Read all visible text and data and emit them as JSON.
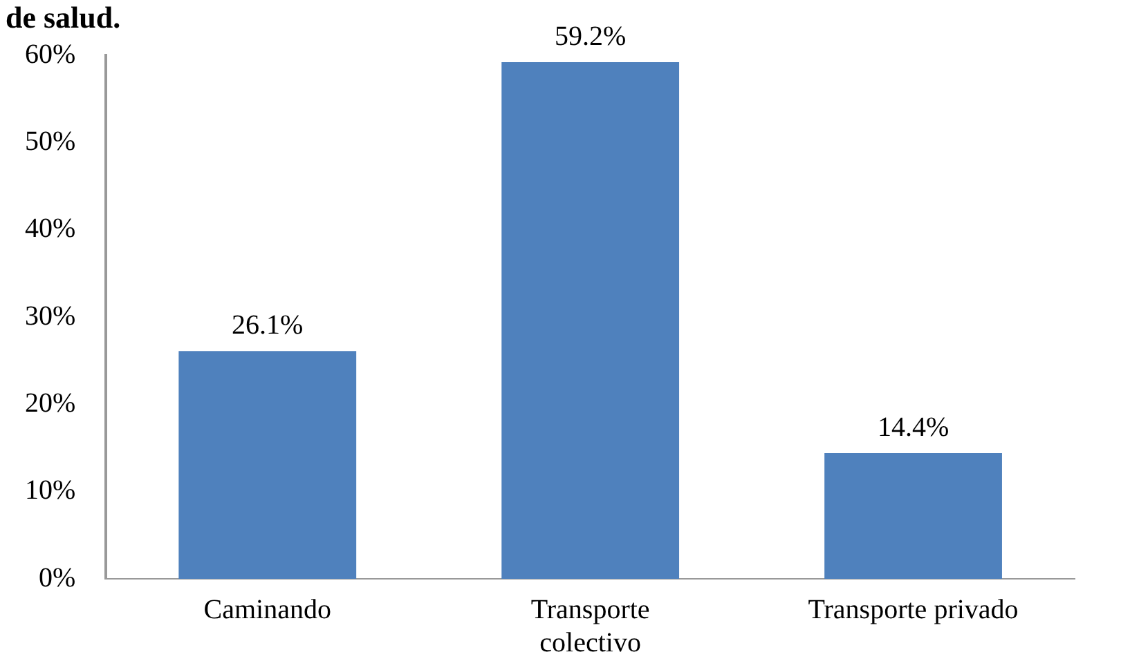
{
  "chart_data": {
    "type": "bar",
    "title": "de salud.",
    "categories": [
      "Caminando",
      "Transporte colectivo",
      "Transporte privado"
    ],
    "values": [
      26.1,
      59.2,
      14.4
    ],
    "color": "#4f81bd",
    "value_labels": [
      "26.1%",
      "59.2%",
      "14.4%"
    ],
    "ylim": [
      0,
      60
    ],
    "yticks": [
      {
        "value": 0,
        "label": "0%"
      },
      {
        "value": 10,
        "label": "10%"
      },
      {
        "value": 20,
        "label": "20%"
      },
      {
        "value": 30,
        "label": "30%"
      },
      {
        "value": 40,
        "label": "40%"
      },
      {
        "value": 50,
        "label": "50%"
      },
      {
        "value": 60,
        "label": "60%"
      }
    ],
    "grid": false,
    "legend": false
  }
}
